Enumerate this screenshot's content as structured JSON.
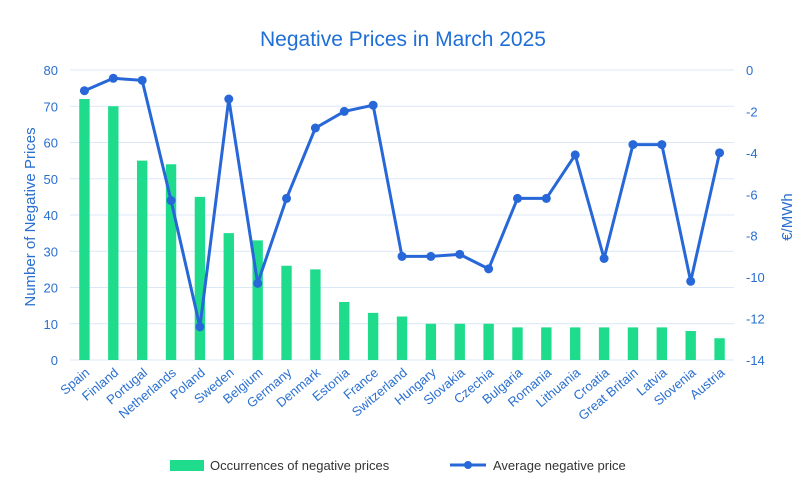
{
  "chart_data": {
    "type": "bar+line",
    "title": "Negative Prices in March 2025",
    "categories": [
      "Spain",
      "Finland",
      "Portugal",
      "Netherlands",
      "Poland",
      "Sweden",
      "Belgium",
      "Germany",
      "Denmark",
      "Estonia",
      "France",
      "Switzerland",
      "Hungary",
      "Slovakia",
      "Czechia",
      "Bulgaria",
      "Romania",
      "Lithuania",
      "Croatia",
      "Great Britain",
      "Latvia",
      "Slovenia",
      "Austria"
    ],
    "series": [
      {
        "name": "Occurrences of negative prices",
        "kind": "bar",
        "axis": "left",
        "values": [
          72,
          70,
          55,
          54,
          45,
          35,
          33,
          26,
          25,
          16,
          13,
          12,
          10,
          10,
          10,
          9,
          9,
          9,
          9,
          9,
          9,
          8,
          6
        ]
      },
      {
        "name": "Average negative price",
        "kind": "line",
        "axis": "right",
        "values": [
          -1.0,
          -0.4,
          -0.5,
          -6.3,
          -12.4,
          -1.4,
          -10.3,
          -6.2,
          -2.8,
          -2.0,
          -1.7,
          -9.0,
          -9.0,
          -8.9,
          -9.6,
          -6.2,
          -6.2,
          -4.1,
          -9.1,
          -3.6,
          -3.6,
          -10.2,
          -4.0
        ]
      }
    ],
    "ylabel": "Number of Negative Prices",
    "ylim": [
      0,
      80
    ],
    "yticks": [
      0,
      10,
      20,
      30,
      40,
      50,
      60,
      70,
      80
    ],
    "y2label": "€/MWh",
    "y2lim": [
      -14,
      0
    ],
    "y2ticks": [
      0,
      -2,
      -4,
      -6,
      -8,
      -10,
      -12,
      -14
    ],
    "grid": true,
    "legend_position": "bottom"
  },
  "colors": {
    "bar": "#1fdc8c",
    "line": "#2767d8",
    "text": "#2a6fd0",
    "title": "#1f6fd6",
    "grid": "#dbe8f7"
  }
}
